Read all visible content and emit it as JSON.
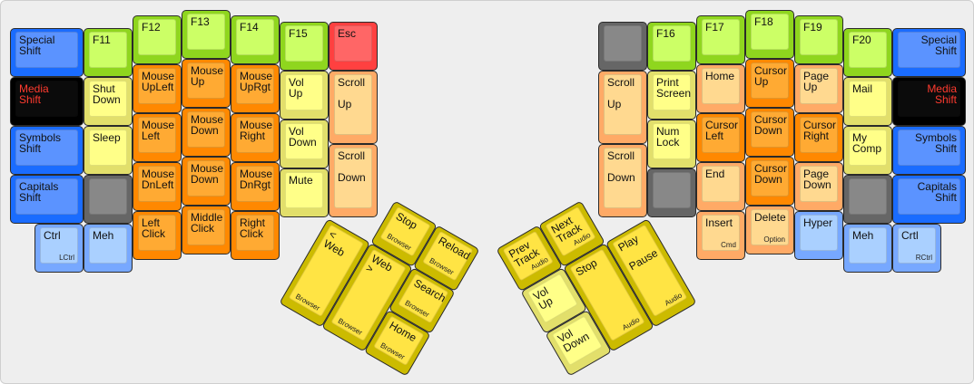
{
  "palette": {
    "blue": [
      "#1a6cff",
      "#5b93ff"
    ],
    "black": [
      "#000000",
      "#0b0b0b"
    ],
    "green": [
      "#8fd61e",
      "#ccff66"
    ],
    "yellow": [
      "#e2df6b",
      "#ffff88"
    ],
    "orange": [
      "#ff8800",
      "#ffaa33"
    ],
    "peach": [
      "#ffaa66",
      "#ffd990"
    ],
    "gray": [
      "#666666",
      "#888888"
    ],
    "red": [
      "#ff4040",
      "#ff6666"
    ],
    "lightblue": [
      "#77a8ff",
      "#aad0ff"
    ],
    "thumb": [
      "#ccbb00",
      "#ffe444"
    ]
  },
  "media_text_color": "#ff3b2f",
  "left_hand": [
    {
      "label": "Special\nShift",
      "color": "blue"
    },
    {
      "label": "Media\nShift",
      "color": "black"
    },
    {
      "label": "Symbols\nShift",
      "color": "blue"
    },
    {
      "label": "Capitals\nShift",
      "color": "blue"
    },
    {
      "label": "Ctrl",
      "sub": "LCtrl",
      "color": "lightblue"
    },
    {
      "label": "F11",
      "color": "green"
    },
    {
      "label": "Shut\nDown",
      "color": "yellow"
    },
    {
      "label": "Sleep",
      "color": "yellow"
    },
    {
      "label": "",
      "color": "gray"
    },
    {
      "label": "Meh",
      "color": "lightblue"
    },
    {
      "label": "F12",
      "color": "green"
    },
    {
      "label": "Mouse\nUpLeft",
      "color": "orange"
    },
    {
      "label": "Mouse\nLeft",
      "color": "orange"
    },
    {
      "label": "Mouse\nDnLeft",
      "color": "orange"
    },
    {
      "label": "Left\nClick",
      "color": "orange"
    },
    {
      "label": "F13",
      "color": "green"
    },
    {
      "label": "Mouse\nUp",
      "color": "orange"
    },
    {
      "label": "Mouse\nDown",
      "color": "orange"
    },
    {
      "label": "Mouse\nDown",
      "color": "orange"
    },
    {
      "label": "Middle\nClick",
      "color": "orange"
    },
    {
      "label": "F14",
      "color": "green"
    },
    {
      "label": "Mouse\nUpRgt",
      "color": "orange"
    },
    {
      "label": "Mouse\nRight",
      "color": "orange"
    },
    {
      "label": "Mouse\nDnRgt",
      "color": "orange"
    },
    {
      "label": "Right\nClick",
      "color": "orange"
    },
    {
      "label": "F15",
      "color": "green"
    },
    {
      "label": "Vol\nUp",
      "color": "yellow"
    },
    {
      "label": "Vol\nDown",
      "color": "yellow"
    },
    {
      "label": "Mute",
      "color": "yellow"
    },
    {
      "label": "Esc",
      "color": "red"
    },
    {
      "label": "Scroll\n\nUp",
      "color": "peach"
    },
    {
      "label": "Scroll\n\nDown",
      "color": "peach"
    }
  ],
  "right_hand": [
    {
      "label": "",
      "color": "gray"
    },
    {
      "label": "Scroll\n\nUp",
      "color": "peach"
    },
    {
      "label": "Scroll\n\nDown",
      "color": "peach"
    },
    {
      "label": "F16",
      "color": "green"
    },
    {
      "label": "Print\nScreen",
      "color": "yellow"
    },
    {
      "label": "Num\nLock",
      "color": "yellow"
    },
    {
      "label": "",
      "color": "gray"
    },
    {
      "label": "F17",
      "color": "green"
    },
    {
      "label": "Home",
      "color": "peach"
    },
    {
      "label": "Cursor\nLeft",
      "color": "orange"
    },
    {
      "label": "End",
      "color": "peach"
    },
    {
      "label": "Insert",
      "sub": "Cmd",
      "color": "peach"
    },
    {
      "label": "F18",
      "color": "green"
    },
    {
      "label": "Cursor\nUp",
      "color": "orange"
    },
    {
      "label": "Cursor\nDown",
      "color": "orange"
    },
    {
      "label": "Cursor\nDown",
      "color": "orange"
    },
    {
      "label": "Delete",
      "sub": "Option",
      "color": "peach"
    },
    {
      "label": "F19",
      "color": "green"
    },
    {
      "label": "Page\nUp",
      "color": "peach"
    },
    {
      "label": "Cursor\nRight",
      "color": "orange"
    },
    {
      "label": "Page\nDown",
      "color": "peach"
    },
    {
      "label": "Hyper",
      "color": "lightblue"
    },
    {
      "label": "F20",
      "color": "green"
    },
    {
      "label": "Mail",
      "color": "yellow"
    },
    {
      "label": "My\nComp",
      "color": "yellow"
    },
    {
      "label": "",
      "color": "gray"
    },
    {
      "label": "Meh",
      "color": "lightblue"
    },
    {
      "label": "Special\nShift",
      "color": "blue",
      "align": "right"
    },
    {
      "label": "Media\nShift",
      "color": "black",
      "align": "right"
    },
    {
      "label": "Symbols\nShift",
      "color": "blue",
      "align": "right"
    },
    {
      "label": "Capitals\nShift",
      "color": "blue",
      "align": "right"
    },
    {
      "label": "Crtl",
      "sub": "RCtrl",
      "color": "lightblue"
    }
  ],
  "left_thumb": [
    {
      "label": "Stop",
      "sub": "Browser",
      "color": "thumb"
    },
    {
      "label": "Reload",
      "sub": "Browser",
      "color": "thumb"
    },
    {
      "label": "< Web",
      "sub": "Browser",
      "color": "thumb"
    },
    {
      "label": "Web >",
      "sub": "Browser",
      "color": "thumb"
    },
    {
      "label": "Search",
      "sub": "Browser",
      "color": "thumb"
    },
    {
      "label": "Home",
      "sub": "Browser",
      "color": "thumb"
    }
  ],
  "right_thumb": [
    {
      "label": "Prev\nTrack",
      "sub": "Audio",
      "color": "thumb"
    },
    {
      "label": "Next\nTrack",
      "sub": "Audio",
      "color": "thumb"
    },
    {
      "label": "Vol\nUp",
      "color": "yellow"
    },
    {
      "label": "Vol\nDown",
      "color": "yellow"
    },
    {
      "label": "Stop",
      "sub": "Audio",
      "color": "thumb"
    },
    {
      "label": "Play\n\nPause",
      "sub": "Audio",
      "color": "thumb"
    }
  ]
}
